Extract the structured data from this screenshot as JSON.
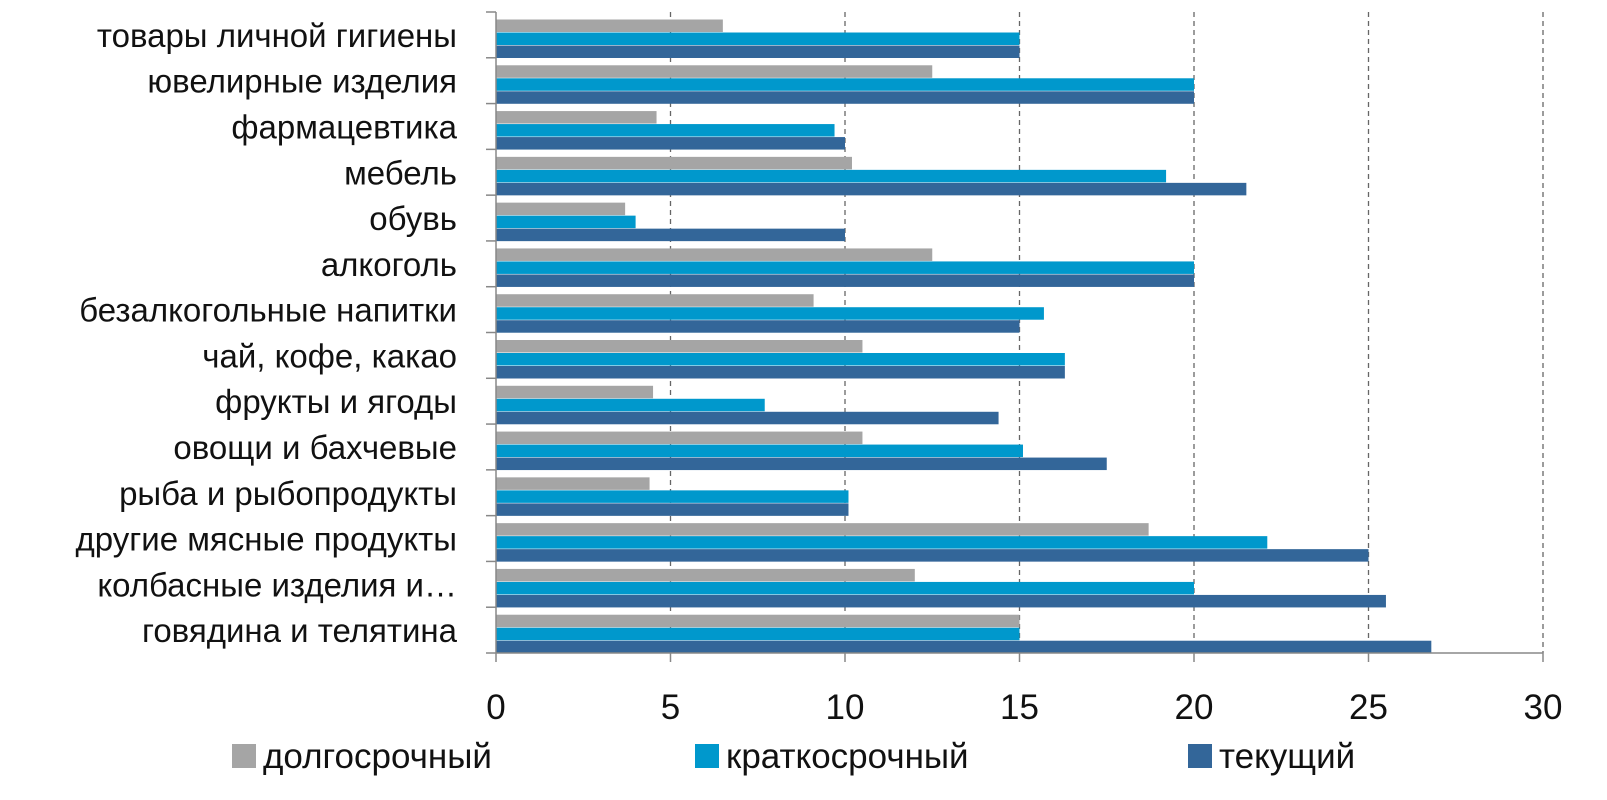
{
  "chart_data": {
    "type": "bar",
    "orientation": "horizontal",
    "categories": [
      "товары личной гигиены",
      "ювелирные изделия",
      "фармацевтика",
      "мебель",
      "обувь",
      "алкоголь",
      "безалкогольные напитки",
      "чай, кофе, какао",
      "фрукты и ягоды",
      "овощи и бахчевые",
      "рыба и рыбопродукты",
      "другие мясные продукты",
      "колбасные изделия и…",
      "говядина и телятина"
    ],
    "series": [
      {
        "name": "долгосрочный",
        "color": "#a5a5a5",
        "values": [
          6.5,
          12.5,
          4.6,
          10.2,
          3.7,
          12.5,
          9.1,
          10.5,
          4.5,
          10.5,
          4.4,
          18.7,
          12.0,
          15.0
        ]
      },
      {
        "name": "краткосрочный",
        "color": "#0098cc",
        "values": [
          15.0,
          20.0,
          9.7,
          19.2,
          4.0,
          20.0,
          15.7,
          16.3,
          7.7,
          15.1,
          10.1,
          22.1,
          20.0,
          15.0
        ]
      },
      {
        "name": "текущий",
        "color": "#336699",
        "values": [
          15.0,
          20.0,
          10.0,
          21.5,
          10.0,
          20.0,
          15.0,
          16.3,
          14.4,
          17.5,
          10.1,
          25.0,
          25.5,
          26.8
        ]
      }
    ],
    "xlim": [
      0,
      30
    ],
    "xticks": [
      "0",
      "5",
      "10",
      "15",
      "20",
      "25",
      "30"
    ],
    "grid": "vertical dashed",
    "legend_position": "bottom"
  }
}
